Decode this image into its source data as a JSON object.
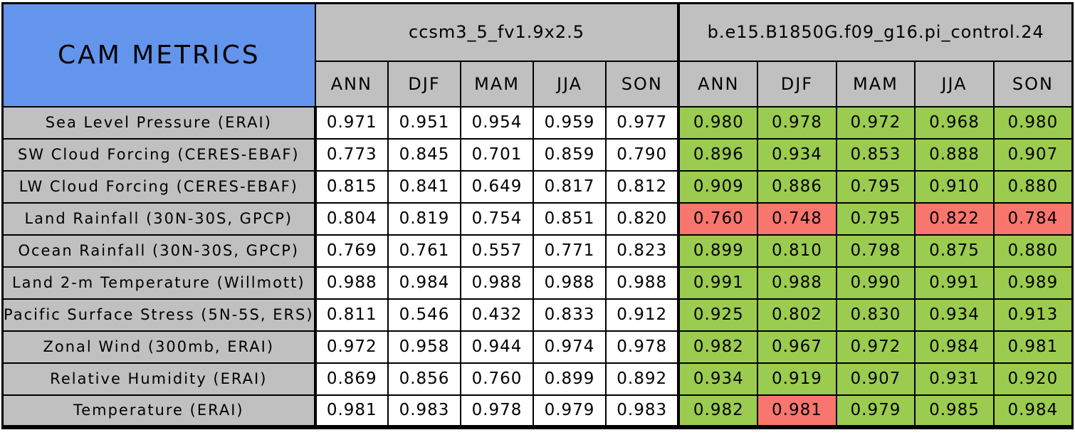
{
  "colors": {
    "title_bg": "#6495ED",
    "header_bg": "#C0C0C0",
    "label_bg": "#C0C0C0",
    "better_bg": "#9BCB4F",
    "worse_bg": "#F8766D",
    "neutral_bg": "#FFFFFF",
    "border_color": "#000000"
  },
  "chart_data": {
    "type": "table",
    "title": "CAM METRICS",
    "column_groups": [
      "ccsm3_5_fv1.9x2.5",
      "b.e15.B1850G.f09_g16.pi_control.24"
    ],
    "seasons": [
      "ANN",
      "DJF",
      "MAM",
      "JJA",
      "SON"
    ],
    "cell_color_meaning": {
      "neutral": "baseline model value",
      "better": "green - improved vs baseline",
      "worse": "red - degraded vs baseline"
    },
    "rows": [
      {
        "label": "Sea Level Pressure (ERAI)",
        "model1_values": [
          "0.971",
          "0.951",
          "0.954",
          "0.959",
          "0.977"
        ],
        "model1_flags": [
          "neutral",
          "neutral",
          "neutral",
          "neutral",
          "neutral"
        ],
        "model2_values": [
          "0.980",
          "0.978",
          "0.972",
          "0.968",
          "0.980"
        ],
        "model2_flags": [
          "better",
          "better",
          "better",
          "better",
          "better"
        ]
      },
      {
        "label": "SW Cloud Forcing (CERES-EBAF)",
        "model1_values": [
          "0.773",
          "0.845",
          "0.701",
          "0.859",
          "0.790"
        ],
        "model1_flags": [
          "neutral",
          "neutral",
          "neutral",
          "neutral",
          "neutral"
        ],
        "model2_values": [
          "0.896",
          "0.934",
          "0.853",
          "0.888",
          "0.907"
        ],
        "model2_flags": [
          "better",
          "better",
          "better",
          "better",
          "better"
        ]
      },
      {
        "label": "LW Cloud Forcing (CERES-EBAF)",
        "model1_values": [
          "0.815",
          "0.841",
          "0.649",
          "0.817",
          "0.812"
        ],
        "model1_flags": [
          "neutral",
          "neutral",
          "neutral",
          "neutral",
          "neutral"
        ],
        "model2_values": [
          "0.909",
          "0.886",
          "0.795",
          "0.910",
          "0.880"
        ],
        "model2_flags": [
          "better",
          "better",
          "better",
          "better",
          "better"
        ]
      },
      {
        "label": "Land Rainfall (30N-30S, GPCP)",
        "model1_values": [
          "0.804",
          "0.819",
          "0.754",
          "0.851",
          "0.820"
        ],
        "model1_flags": [
          "neutral",
          "neutral",
          "neutral",
          "neutral",
          "neutral"
        ],
        "model2_values": [
          "0.760",
          "0.748",
          "0.795",
          "0.822",
          "0.784"
        ],
        "model2_flags": [
          "worse",
          "worse",
          "better",
          "worse",
          "worse"
        ]
      },
      {
        "label": "Ocean Rainfall (30N-30S, GPCP)",
        "model1_values": [
          "0.769",
          "0.761",
          "0.557",
          "0.771",
          "0.823"
        ],
        "model1_flags": [
          "neutral",
          "neutral",
          "neutral",
          "neutral",
          "neutral"
        ],
        "model2_values": [
          "0.899",
          "0.810",
          "0.798",
          "0.875",
          "0.880"
        ],
        "model2_flags": [
          "better",
          "better",
          "better",
          "better",
          "better"
        ]
      },
      {
        "label": "Land 2-m Temperature (Willmott)",
        "model1_values": [
          "0.988",
          "0.984",
          "0.988",
          "0.988",
          "0.988"
        ],
        "model1_flags": [
          "neutral",
          "neutral",
          "neutral",
          "neutral",
          "neutral"
        ],
        "model2_values": [
          "0.991",
          "0.988",
          "0.990",
          "0.991",
          "0.989"
        ],
        "model2_flags": [
          "better",
          "better",
          "better",
          "better",
          "better"
        ]
      },
      {
        "label": "Pacific Surface Stress (5N-5S, ERS)",
        "model1_values": [
          "0.811",
          "0.546",
          "0.432",
          "0.833",
          "0.912"
        ],
        "model1_flags": [
          "neutral",
          "neutral",
          "neutral",
          "neutral",
          "neutral"
        ],
        "model2_values": [
          "0.925",
          "0.802",
          "0.830",
          "0.934",
          "0.913"
        ],
        "model2_flags": [
          "better",
          "better",
          "better",
          "better",
          "better"
        ]
      },
      {
        "label": "Zonal Wind (300mb, ERAI)",
        "model1_values": [
          "0.972",
          "0.958",
          "0.944",
          "0.974",
          "0.978"
        ],
        "model1_flags": [
          "neutral",
          "neutral",
          "neutral",
          "neutral",
          "neutral"
        ],
        "model2_values": [
          "0.982",
          "0.967",
          "0.972",
          "0.984",
          "0.981"
        ],
        "model2_flags": [
          "better",
          "better",
          "better",
          "better",
          "better"
        ]
      },
      {
        "label": "Relative Humidity (ERAI)",
        "model1_values": [
          "0.869",
          "0.856",
          "0.760",
          "0.899",
          "0.892"
        ],
        "model1_flags": [
          "neutral",
          "neutral",
          "neutral",
          "neutral",
          "neutral"
        ],
        "model2_values": [
          "0.934",
          "0.919",
          "0.907",
          "0.931",
          "0.920"
        ],
        "model2_flags": [
          "better",
          "better",
          "better",
          "better",
          "better"
        ]
      },
      {
        "label": "Temperature (ERAI)",
        "model1_values": [
          "0.981",
          "0.983",
          "0.978",
          "0.979",
          "0.983"
        ],
        "model1_flags": [
          "neutral",
          "neutral",
          "neutral",
          "neutral",
          "neutral"
        ],
        "model2_values": [
          "0.982",
          "0.981",
          "0.979",
          "0.985",
          "0.984"
        ],
        "model2_flags": [
          "better",
          "worse",
          "better",
          "better",
          "better"
        ]
      }
    ]
  }
}
